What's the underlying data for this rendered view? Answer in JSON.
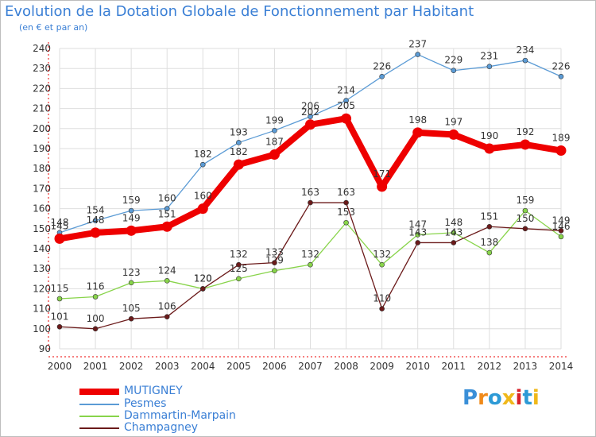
{
  "title": "Evolution de la Dotation Globale de Fonctionnement par Habitant",
  "subtitle": "(en € et par an)",
  "colors": {
    "grid": "#dedede",
    "axis_red": "#ee0000",
    "label_text": "#333333",
    "title_text": "#3a7fd5"
  },
  "chart_data": {
    "type": "line",
    "title": "Evolution de la Dotation Globale de Fonctionnement par Habitant",
    "ylabel": "(en € et par an)",
    "xlabel": "",
    "x": [
      "2000",
      "2001",
      "2002",
      "2003",
      "2004",
      "2005",
      "2006",
      "2007",
      "2008",
      "2009",
      "2010",
      "2011",
      "2012",
      "2013",
      "2014"
    ],
    "ylim": [
      90,
      240
    ],
    "yticks": [
      "90",
      "100",
      "110",
      "120",
      "130",
      "140",
      "150",
      "160",
      "170",
      "180",
      "190",
      "200",
      "210",
      "220",
      "230",
      "240"
    ],
    "grid": true,
    "legend_position": "bottom-left",
    "series": [
      {
        "name": "Pesmes",
        "color": "#5b9bd5",
        "values": [
          148,
          154,
          159,
          160,
          182,
          193,
          199,
          206,
          214,
          226,
          237,
          229,
          231,
          234,
          226
        ]
      },
      {
        "name": "Dammartin-Marpain",
        "color": "#88d44a",
        "values": [
          115,
          116,
          123,
          124,
          120,
          125,
          129,
          132,
          153,
          132,
          147,
          148,
          138,
          159,
          146
        ]
      },
      {
        "name": "Champagney",
        "color": "#6b1a1a",
        "values": [
          101,
          100,
          105,
          106,
          120,
          132,
          133,
          163,
          163,
          110,
          143,
          143,
          151,
          150,
          149
        ]
      },
      {
        "name": "MUTIGNEY",
        "color": "#ee0000",
        "values": [
          145,
          148,
          149,
          151,
          160,
          182,
          187,
          202,
          205,
          171,
          198,
          197,
          190,
          192,
          189
        ]
      }
    ]
  },
  "legend": {
    "items": [
      {
        "label": "MUTIGNEY",
        "color": "#ee0000"
      },
      {
        "label": "Pesmes",
        "color": "#5b9bd5"
      },
      {
        "label": "Dammartin-Marpain",
        "color": "#88d44a"
      },
      {
        "label": "Champagney",
        "color": "#6b1a1a"
      }
    ]
  },
  "logo": {
    "text": "Proxiti",
    "letter_colors": [
      "#3a8fd8",
      "#f08a1a",
      "#2d9ad6",
      "#f0b81a",
      "#d8222a",
      "#2d9ad6",
      "#f0b81a"
    ]
  }
}
